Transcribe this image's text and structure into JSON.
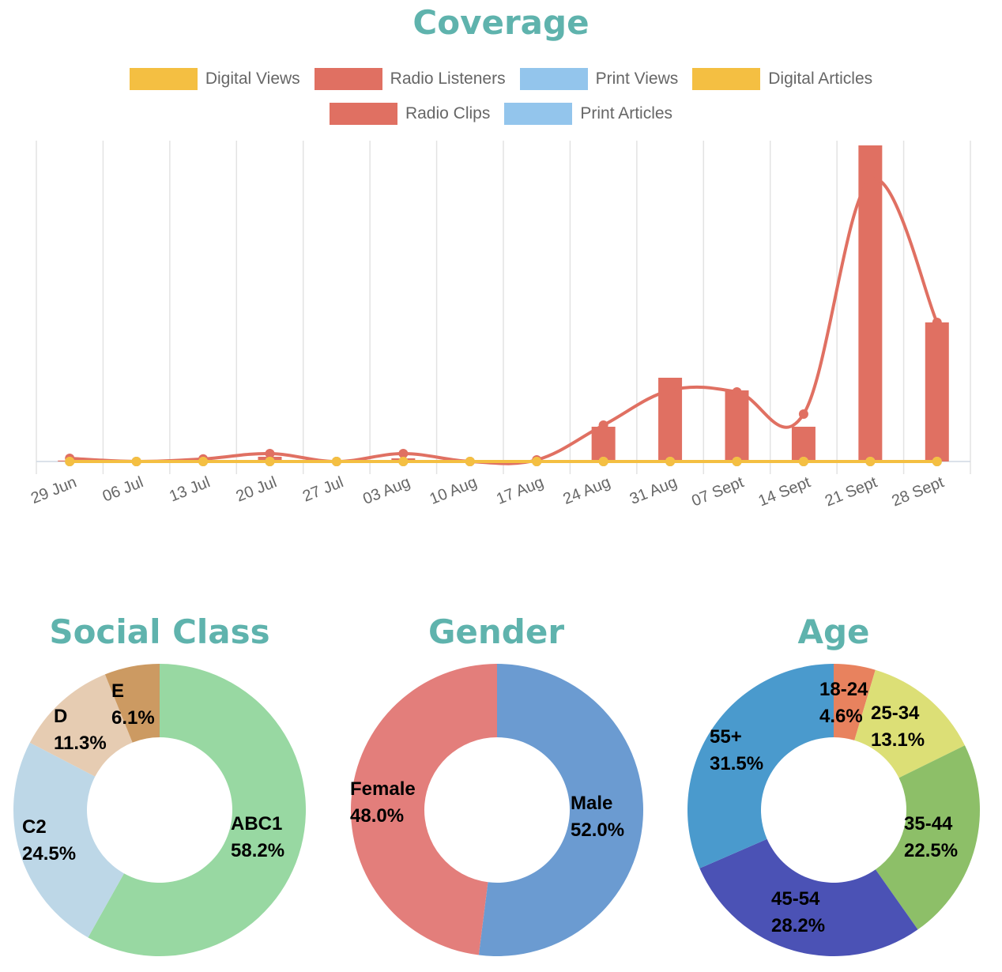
{
  "coverage": {
    "title": "Coverage",
    "legend_row1": [
      {
        "label": "Digital Views",
        "color": "#f4bf42"
      },
      {
        "label": "Radio Listeners",
        "color": "#e07062"
      },
      {
        "label": "Print Views",
        "color": "#93c5ec"
      },
      {
        "label": "Digital Articles",
        "color": "#f4bf42"
      }
    ],
    "legend_row2": [
      {
        "label": "Radio Clips",
        "color": "#e07062"
      },
      {
        "label": "Print Articles",
        "color": "#93c5ec"
      }
    ]
  },
  "social_class": {
    "title": "Social Class"
  },
  "gender": {
    "title": "Gender"
  },
  "age": {
    "title": "Age"
  },
  "chart_data": [
    {
      "type": "bar",
      "title": "Coverage",
      "categories": [
        "29 Jun",
        "06 Jul",
        "13 Jul",
        "20 Jul",
        "27 Jul",
        "03 Aug",
        "10 Aug",
        "17 Aug",
        "24 Aug",
        "31 Aug",
        "07 Sept",
        "14 Sept",
        "21 Sept",
        "28 Sept"
      ],
      "series": [
        {
          "name": "Radio Clips",
          "kind": "bar",
          "color": "#e07062",
          "values": [
            0.3,
            0,
            0.3,
            1.5,
            0,
            1,
            0,
            0,
            11,
            26.5,
            22.5,
            11,
            100,
            44
          ]
        },
        {
          "name": "Radio Listeners",
          "kind": "line",
          "color": "#e07062",
          "values": [
            1,
            0,
            0.8,
            2.5,
            0,
            2.5,
            0,
            0.5,
            11.5,
            22.5,
            22,
            15,
            89,
            44
          ]
        },
        {
          "name": "Digital Views",
          "kind": "line",
          "color": "#f4bf42",
          "values": [
            0,
            0,
            0,
            0,
            0,
            0,
            0,
            0,
            0,
            0,
            0,
            0,
            0,
            0
          ]
        },
        {
          "name": "Digital Articles",
          "kind": "line",
          "color": "#f4bf42",
          "values": [
            0,
            0,
            0,
            0,
            0,
            0,
            0,
            0,
            0,
            0,
            0,
            0,
            0,
            0
          ]
        },
        {
          "name": "Print Views",
          "kind": "line",
          "color": "#93c5ec",
          "values": [
            0,
            0,
            0,
            0,
            0,
            0,
            0,
            0,
            0,
            0,
            0,
            0,
            0,
            0
          ]
        },
        {
          "name": "Print Articles",
          "kind": "line",
          "color": "#93c5ec",
          "values": [
            0,
            0,
            0,
            0,
            0,
            0,
            0,
            0,
            0,
            0,
            0,
            0,
            0,
            0
          ]
        }
      ],
      "ylim": [
        0,
        100
      ],
      "grid": "vertical",
      "legend": "top"
    },
    {
      "type": "pie",
      "title": "Social Class",
      "slices": [
        {
          "label": "ABC1",
          "pct_label": "58.2%",
          "value": 58.2,
          "color": "#98d8a2"
        },
        {
          "label": "C2",
          "pct_label": "24.5%",
          "value": 24.5,
          "color": "#bdd7e7"
        },
        {
          "label": "D",
          "pct_label": "11.3%",
          "value": 11.3,
          "color": "#e6ccb2"
        },
        {
          "label": "E",
          "pct_label": "6.1%",
          "value": 6.1,
          "color": "#cc9a62"
        }
      ]
    },
    {
      "type": "pie",
      "title": "Gender",
      "slices": [
        {
          "label": "Male",
          "pct_label": "52.0%",
          "value": 52.0,
          "color": "#6b9bd1"
        },
        {
          "label": "Female",
          "pct_label": "48.0%",
          "value": 48.0,
          "color": "#e37e7b"
        }
      ]
    },
    {
      "type": "pie",
      "title": "Age",
      "slices": [
        {
          "label": "18-24",
          "pct_label": "4.6%",
          "value": 4.6,
          "color": "#e8825e"
        },
        {
          "label": "25-34",
          "pct_label": "13.1%",
          "value": 13.1,
          "color": "#dcdf76"
        },
        {
          "label": "35-44",
          "pct_label": "22.5%",
          "value": 22.5,
          "color": "#8dbf68"
        },
        {
          "label": "45-54",
          "pct_label": "28.2%",
          "value": 28.2,
          "color": "#4b52b5"
        },
        {
          "label": "55+",
          "pct_label": "31.5%",
          "value": 31.5,
          "color": "#4a9acd"
        }
      ]
    }
  ]
}
